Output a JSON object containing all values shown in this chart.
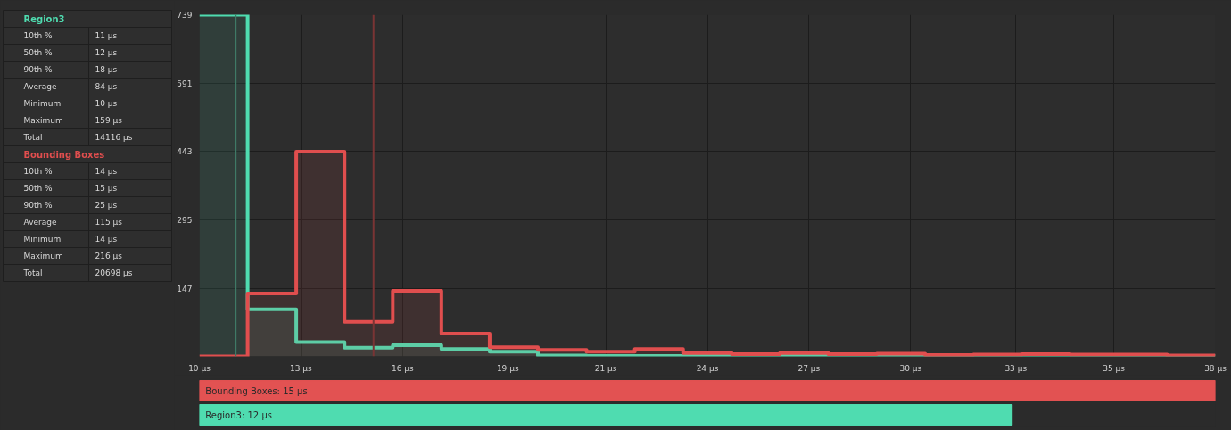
{
  "chart_data": [
    {
      "type": "other",
      "categories": [
        "10th %",
        "50th %",
        "90th %",
        "Average",
        "Minimum",
        "Maximum",
        "Total"
      ],
      "series": [
        {
          "name": "Region3",
          "color": "#2e2e2e",
          "values": [
            11,
            12,
            18,
            84,
            10,
            159,
            14116
          ],
          "value_labels": [
            "11 µs",
            "12 µs",
            "18 µs",
            "84 µs",
            "10 µs",
            "159 µs",
            "14116 µs"
          ]
        },
        {
          "name": "Bounding Boxes",
          "color": "#2e2e2e",
          "values": [
            14,
            15,
            25,
            115,
            14,
            216,
            20698
          ],
          "value_labels": [
            "14 µs",
            "15 µs",
            "25 µs",
            "115 µs",
            "14 µs",
            "216 µs",
            "20698 µs"
          ]
        }
      ]
    },
    {
      "type": "histogram",
      "bins": [
        10,
        11.33,
        12.67,
        14,
        15.33,
        16.67,
        18,
        19.33,
        20.67,
        22,
        23.33,
        24.67,
        26,
        27.33,
        28.67,
        30,
        31.33,
        32.67,
        34,
        35.33,
        36.67,
        38
      ],
      "series": [
        {
          "color": "#4fdcb0",
          "values": [
            739,
            102,
            31,
            19,
            24,
            16,
            10,
            2,
            1,
            1,
            1,
            1,
            1,
            1,
            1,
            1,
            1,
            1,
            1,
            1,
            1
          ]
        },
        {
          "color": "#e04e4e",
          "values": [
            0,
            136,
            443,
            75,
            142,
            49,
            20,
            14,
            10,
            16,
            7,
            5,
            7,
            5,
            6,
            3,
            4,
            5,
            4,
            4,
            2
          ]
        }
      ],
      "xlim": [
        10,
        38
      ],
      "xticks": [
        {
          "value": 10,
          "label": "10 µs"
        },
        {
          "value": 12.8,
          "label": "13 µs"
        },
        {
          "value": 15.6,
          "label": "16 µs"
        },
        {
          "value": 18.5,
          "label": "19 µs"
        },
        {
          "value": 21.2,
          "label": "21 µs"
        },
        {
          "value": 24,
          "label": "24 µs"
        },
        {
          "value": 26.8,
          "label": "27 µs"
        },
        {
          "value": 29.6,
          "label": "30 µs"
        },
        {
          "value": 32.5,
          "label": "33 µs"
        },
        {
          "value": 35.2,
          "label": "35 µs"
        },
        {
          "value": 38,
          "label": "38 µs"
        }
      ],
      "ylim": [
        0,
        739
      ],
      "yticks": [
        147,
        295,
        443,
        591,
        739
      ],
      "grid": true,
      "ref_lines": [
        {
          "axis": "x",
          "value": 11.0,
          "color": "#3f7a66"
        },
        {
          "axis": "x",
          "value": 14.8,
          "color": "#7a3434"
        }
      ]
    },
    {
      "type": "bar",
      "orientation": "horizontal",
      "categories": [
        null,
        null
      ],
      "values": [
        15,
        12
      ],
      "colors": [
        "#e25252",
        "#4fdcb0"
      ],
      "value_labels": [
        "Bounding Boxes: 15 µs",
        "Region3: 12 µs"
      ]
    }
  ]
}
